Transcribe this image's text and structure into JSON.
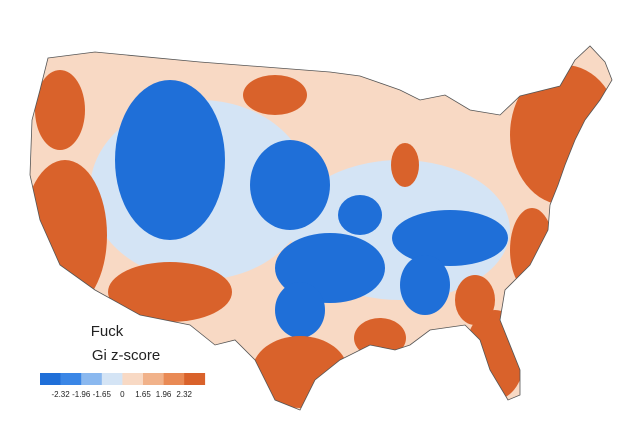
{
  "legend": {
    "title": "Fuck",
    "subtitle": "Gi z-score",
    "colors": [
      "#1f6fd8",
      "#3a86e6",
      "#8ab8ef",
      "#d4e4f5",
      "#f8d9c4",
      "#f1b28a",
      "#e98a55",
      "#d9622b"
    ],
    "ticks": [
      -2.32,
      -1.96,
      -1.65,
      0,
      1.65,
      1.96,
      2.32
    ]
  }
}
